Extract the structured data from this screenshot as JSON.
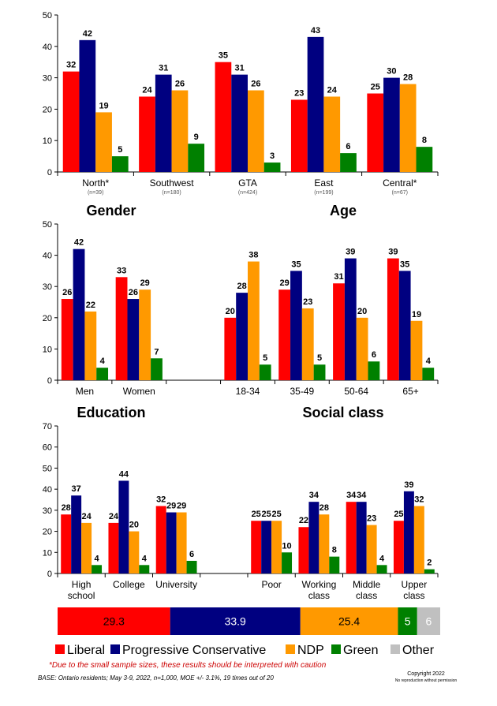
{
  "colors": {
    "liberal": "#ff0000",
    "pc": "#000080",
    "ndp": "#ff9900",
    "green": "#008000",
    "other": "#c0c0c0"
  },
  "chart_data": [
    {
      "type": "bar",
      "ylim": [
        0,
        50
      ],
      "yticks": [
        "0",
        "10",
        "20",
        "30",
        "40",
        "50"
      ],
      "headings": [],
      "categories": [
        {
          "label": "North*",
          "sub": "(n=39)"
        },
        {
          "label": "Southwest",
          "sub": "(n=180)"
        },
        {
          "label": "GTA",
          "sub": "(n=424)"
        },
        {
          "label": "East",
          "sub": "(n=199)"
        },
        {
          "label": "Central*",
          "sub": "(n=67)"
        }
      ],
      "series": [
        {
          "key": "liberal",
          "values": [
            32,
            24,
            35,
            23,
            25
          ]
        },
        {
          "key": "pc",
          "values": [
            42,
            31,
            31,
            43,
            30
          ]
        },
        {
          "key": "ndp",
          "values": [
            19,
            26,
            26,
            24,
            28
          ]
        },
        {
          "key": "green",
          "values": [
            5,
            9,
            3,
            6,
            8
          ]
        }
      ]
    },
    {
      "type": "bar",
      "ylim": [
        0,
        50
      ],
      "yticks": [
        "0",
        "10",
        "20",
        "30",
        "40",
        "50"
      ],
      "headings": [
        {
          "text": "Gender",
          "position": "left"
        },
        {
          "text": "Age",
          "position": "right"
        }
      ],
      "categories": [
        {
          "label": "Men"
        },
        {
          "label": "Women"
        },
        {
          "label": "",
          "gap": true
        },
        {
          "label": "18-34"
        },
        {
          "label": "35-49"
        },
        {
          "label": "50-64"
        },
        {
          "label": "65+"
        }
      ],
      "series": [
        {
          "key": "liberal",
          "values": [
            26,
            33,
            null,
            20,
            29,
            31,
            39
          ]
        },
        {
          "key": "pc",
          "values": [
            42,
            26,
            null,
            28,
            35,
            39,
            35
          ]
        },
        {
          "key": "ndp",
          "values": [
            22,
            29,
            null,
            38,
            23,
            20,
            19
          ]
        },
        {
          "key": "green",
          "values": [
            4,
            7,
            null,
            5,
            5,
            6,
            4
          ]
        }
      ]
    },
    {
      "type": "bar",
      "ylim": [
        0,
        70
      ],
      "yticks": [
        "0",
        "10",
        "20",
        "30",
        "40",
        "50",
        "60",
        "70"
      ],
      "headings": [
        {
          "text": "Education",
          "position": "left"
        },
        {
          "text": "Social class",
          "position": "right"
        }
      ],
      "categories": [
        {
          "label": "High school",
          "lines": [
            "High",
            "school"
          ]
        },
        {
          "label": "College"
        },
        {
          "label": "University"
        },
        {
          "label": "",
          "gap": true
        },
        {
          "label": "Poor"
        },
        {
          "label": "Working class",
          "lines": [
            "Working",
            "class"
          ]
        },
        {
          "label": "Middle class",
          "lines": [
            "Middle",
            "class"
          ]
        },
        {
          "label": "Upper class",
          "lines": [
            "Upper",
            "class"
          ]
        }
      ],
      "series": [
        {
          "key": "liberal",
          "values": [
            28,
            24,
            32,
            null,
            25,
            22,
            34,
            25
          ]
        },
        {
          "key": "pc",
          "values": [
            37,
            44,
            29,
            null,
            25,
            34,
            34,
            39
          ]
        },
        {
          "key": "ndp",
          "values": [
            24,
            20,
            29,
            null,
            25,
            28,
            23,
            32
          ]
        },
        {
          "key": "green",
          "values": [
            4,
            4,
            6,
            null,
            10,
            8,
            4,
            2
          ]
        }
      ]
    },
    {
      "type": "bar",
      "orientation": "stacked-horizontal",
      "segments": [
        {
          "key": "liberal",
          "value": 29.3,
          "label": "29.3"
        },
        {
          "key": "pc",
          "value": 33.9,
          "label": "33.9"
        },
        {
          "key": "ndp",
          "value": 25.4,
          "label": "25.4"
        },
        {
          "key": "green",
          "value": 5,
          "label": "5"
        },
        {
          "key": "other",
          "value": 6,
          "label": "6"
        }
      ]
    }
  ],
  "legend": [
    {
      "key": "liberal",
      "label": "Liberal"
    },
    {
      "key": "pc",
      "label": "Progressive Conservative"
    },
    {
      "key": "ndp",
      "label": "NDP"
    },
    {
      "key": "green",
      "label": "Green"
    },
    {
      "key": "other",
      "label": "Other"
    }
  ],
  "footnote": "*Due to the small sample sizes, these results should be interpreted with caution",
  "base_note": "BASE: Ontario residents; May 3-9, 2022, n=1,000,  MOE +/- 3.1%, 19 times out of 20",
  "copyright": "Copyright 2022",
  "copyright_note": "No reproduction without permission"
}
